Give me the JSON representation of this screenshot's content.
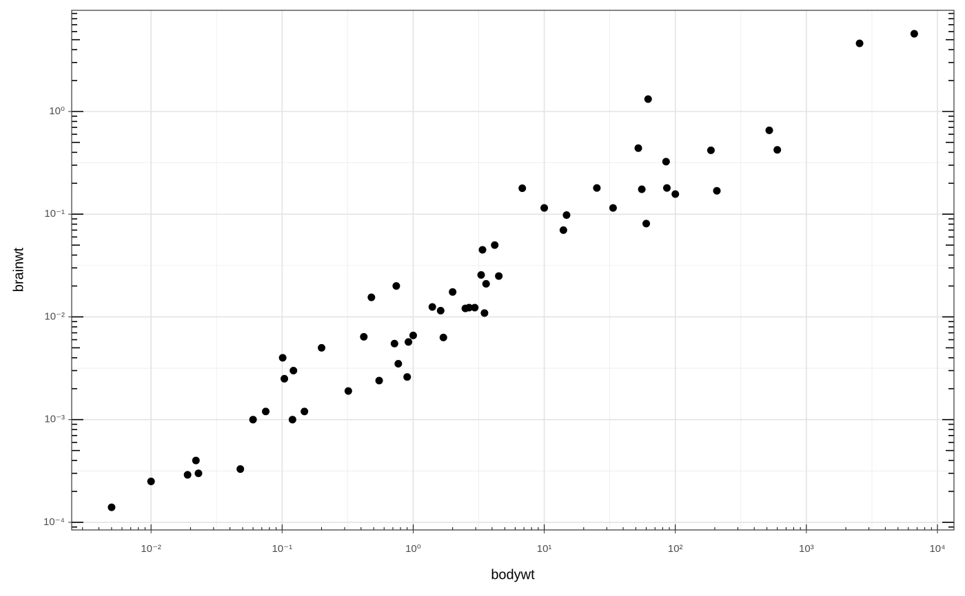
{
  "chart_data": {
    "type": "scatter",
    "x_label": "bodywt",
    "y_label": "brainwt",
    "log_x": true,
    "log_y": true,
    "grid": true,
    "color": "#000000",
    "xlim": [
      0.00248,
      13370
    ],
    "ylim": [
      8.43e-05,
      9.66
    ],
    "xticks": [
      {
        "value": 0.01,
        "label": "10⁻²"
      },
      {
        "value": 0.1,
        "label": "10⁻¹"
      },
      {
        "value": 1,
        "label": "10⁰"
      },
      {
        "value": 10,
        "label": "10¹"
      },
      {
        "value": 100,
        "label": "10²"
      },
      {
        "value": 1000,
        "label": "10³"
      },
      {
        "value": 10000,
        "label": "10⁴"
      }
    ],
    "yticks": [
      {
        "value": 0.0001,
        "label": "10⁻⁴"
      },
      {
        "value": 0.001,
        "label": "10⁻³"
      },
      {
        "value": 0.01,
        "label": "10⁻²"
      },
      {
        "value": 0.1,
        "label": "10⁻¹"
      },
      {
        "value": 1,
        "label": "10⁰"
      }
    ],
    "x": [
      0.005,
      0.01,
      0.019,
      0.022,
      0.023,
      0.048,
      0.06,
      0.075,
      0.101,
      0.104,
      0.12,
      0.122,
      0.148,
      0.2,
      0.32,
      0.42,
      0.48,
      0.55,
      0.72,
      0.743,
      0.77,
      0.9,
      0.92,
      1,
      1.4,
      1.62,
      1.7,
      2,
      2.5,
      2.67,
      2.95,
      3.3,
      3.38,
      3.5,
      3.6,
      4.19,
      4.5,
      6.8,
      10,
      14,
      14.8,
      25.2,
      33.5,
      52.2,
      55.5,
      60,
      62,
      85,
      86.25,
      100,
      187,
      207.5,
      521,
      600,
      2547,
      6654
    ],
    "y": [
      0.00014,
      0.00025,
      0.00029,
      0.0004,
      0.0003,
      0.00033,
      0.001,
      0.0012,
      0.004,
      0.0025,
      0.001,
      0.003,
      0.0012,
      0.005,
      0.0019,
      0.0064,
      0.0155,
      0.0024,
      0.0055,
      0.02,
      0.0035,
      0.0026,
      0.0057,
      0.0066,
      0.0125,
      0.0115,
      0.0063,
      0.0175,
      0.0121,
      0.0123,
      0.0123,
      0.0256,
      0.045,
      0.0109,
      0.021,
      0.05,
      0.025,
      0.179,
      0.115,
      0.07,
      0.098,
      0.18,
      0.115,
      0.44,
      0.175,
      0.081,
      1.32,
      0.325,
      0.18,
      0.157,
      0.419,
      0.169,
      0.655,
      0.423,
      4.603,
      5.712
    ]
  }
}
